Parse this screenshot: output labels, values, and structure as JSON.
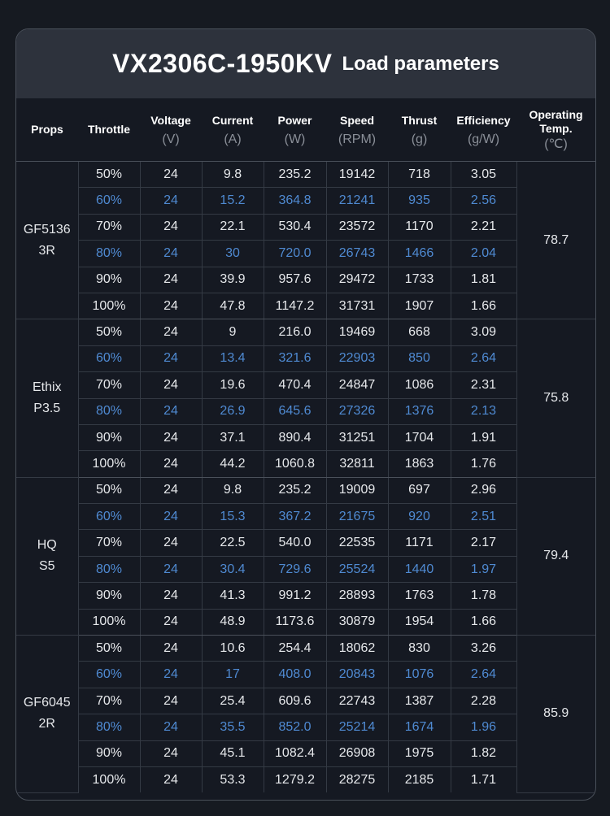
{
  "title": {
    "model": "VX2306C-1950KV",
    "subtitle": "Load parameters"
  },
  "headers": [
    {
      "label": "Props",
      "unit": ""
    },
    {
      "label": "Throttle",
      "unit": ""
    },
    {
      "label": "Voltage",
      "unit": "(V)"
    },
    {
      "label": "Current",
      "unit": "(A)"
    },
    {
      "label": "Power",
      "unit": "(W)"
    },
    {
      "label": "Speed",
      "unit": "(RPM)"
    },
    {
      "label": "Thrust",
      "unit": "(g)"
    },
    {
      "label": "Efficiency",
      "unit": "(g/W)"
    },
    {
      "label": "Operating Temp.",
      "unit": "(℃)"
    }
  ],
  "colors": {
    "highlight": "#4f8ad2",
    "background": "#161a21",
    "title_bar": "#2d323c"
  },
  "groups": [
    {
      "prop_line1": "GF5136",
      "prop_line2": "3R",
      "temp": "78.7",
      "rows": [
        {
          "throttle": "50%",
          "voltage": "24",
          "current": "9.8",
          "power": "235.2",
          "speed": "19142",
          "thrust": "718",
          "efficiency": "3.05",
          "highlight": false
        },
        {
          "throttle": "60%",
          "voltage": "24",
          "current": "15.2",
          "power": "364.8",
          "speed": "21241",
          "thrust": "935",
          "efficiency": "2.56",
          "highlight": true
        },
        {
          "throttle": "70%",
          "voltage": "24",
          "current": "22.1",
          "power": "530.4",
          "speed": "23572",
          "thrust": "1170",
          "efficiency": "2.21",
          "highlight": false
        },
        {
          "throttle": "80%",
          "voltage": "24",
          "current": "30",
          "power": "720.0",
          "speed": "26743",
          "thrust": "1466",
          "efficiency": "2.04",
          "highlight": true
        },
        {
          "throttle": "90%",
          "voltage": "24",
          "current": "39.9",
          "power": "957.6",
          "speed": "29472",
          "thrust": "1733",
          "efficiency": "1.81",
          "highlight": false
        },
        {
          "throttle": "100%",
          "voltage": "24",
          "current": "47.8",
          "power": "1147.2",
          "speed": "31731",
          "thrust": "1907",
          "efficiency": "1.66",
          "highlight": false
        }
      ]
    },
    {
      "prop_line1": "Ethix",
      "prop_line2": "P3.5",
      "temp": "75.8",
      "rows": [
        {
          "throttle": "50%",
          "voltage": "24",
          "current": "9",
          "power": "216.0",
          "speed": "19469",
          "thrust": "668",
          "efficiency": "3.09",
          "highlight": false
        },
        {
          "throttle": "60%",
          "voltage": "24",
          "current": "13.4",
          "power": "321.6",
          "speed": "22903",
          "thrust": "850",
          "efficiency": "2.64",
          "highlight": true
        },
        {
          "throttle": "70%",
          "voltage": "24",
          "current": "19.6",
          "power": "470.4",
          "speed": "24847",
          "thrust": "1086",
          "efficiency": "2.31",
          "highlight": false
        },
        {
          "throttle": "80%",
          "voltage": "24",
          "current": "26.9",
          "power": "645.6",
          "speed": "27326",
          "thrust": "1376",
          "efficiency": "2.13",
          "highlight": true
        },
        {
          "throttle": "90%",
          "voltage": "24",
          "current": "37.1",
          "power": "890.4",
          "speed": "31251",
          "thrust": "1704",
          "efficiency": "1.91",
          "highlight": false
        },
        {
          "throttle": "100%",
          "voltage": "24",
          "current": "44.2",
          "power": "1060.8",
          "speed": "32811",
          "thrust": "1863",
          "efficiency": "1.76",
          "highlight": false
        }
      ]
    },
    {
      "prop_line1": "HQ",
      "prop_line2": "S5",
      "temp": "79.4",
      "rows": [
        {
          "throttle": "50%",
          "voltage": "24",
          "current": "9.8",
          "power": "235.2",
          "speed": "19009",
          "thrust": "697",
          "efficiency": "2.96",
          "highlight": false
        },
        {
          "throttle": "60%",
          "voltage": "24",
          "current": "15.3",
          "power": "367.2",
          "speed": "21675",
          "thrust": "920",
          "efficiency": "2.51",
          "highlight": true
        },
        {
          "throttle": "70%",
          "voltage": "24",
          "current": "22.5",
          "power": "540.0",
          "speed": "22535",
          "thrust": "1171",
          "efficiency": "2.17",
          "highlight": false
        },
        {
          "throttle": "80%",
          "voltage": "24",
          "current": "30.4",
          "power": "729.6",
          "speed": "25524",
          "thrust": "1440",
          "efficiency": "1.97",
          "highlight": true
        },
        {
          "throttle": "90%",
          "voltage": "24",
          "current": "41.3",
          "power": "991.2",
          "speed": "28893",
          "thrust": "1763",
          "efficiency": "1.78",
          "highlight": false
        },
        {
          "throttle": "100%",
          "voltage": "24",
          "current": "48.9",
          "power": "1173.6",
          "speed": "30879",
          "thrust": "1954",
          "efficiency": "1.66",
          "highlight": false
        }
      ]
    },
    {
      "prop_line1": "GF6045",
      "prop_line2": "2R",
      "temp": "85.9",
      "rows": [
        {
          "throttle": "50%",
          "voltage": "24",
          "current": "10.6",
          "power": "254.4",
          "speed": "18062",
          "thrust": "830",
          "efficiency": "3.26",
          "highlight": false
        },
        {
          "throttle": "60%",
          "voltage": "24",
          "current": "17",
          "power": "408.0",
          "speed": "20843",
          "thrust": "1076",
          "efficiency": "2.64",
          "highlight": true
        },
        {
          "throttle": "70%",
          "voltage": "24",
          "current": "25.4",
          "power": "609.6",
          "speed": "22743",
          "thrust": "1387",
          "efficiency": "2.28",
          "highlight": false
        },
        {
          "throttle": "80%",
          "voltage": "24",
          "current": "35.5",
          "power": "852.0",
          "speed": "25214",
          "thrust": "1674",
          "efficiency": "1.96",
          "highlight": true
        },
        {
          "throttle": "90%",
          "voltage": "24",
          "current": "45.1",
          "power": "1082.4",
          "speed": "26908",
          "thrust": "1975",
          "efficiency": "1.82",
          "highlight": false
        },
        {
          "throttle": "100%",
          "voltage": "24",
          "current": "53.3",
          "power": "1279.2",
          "speed": "28275",
          "thrust": "2185",
          "efficiency": "1.71",
          "highlight": false
        }
      ]
    }
  ]
}
